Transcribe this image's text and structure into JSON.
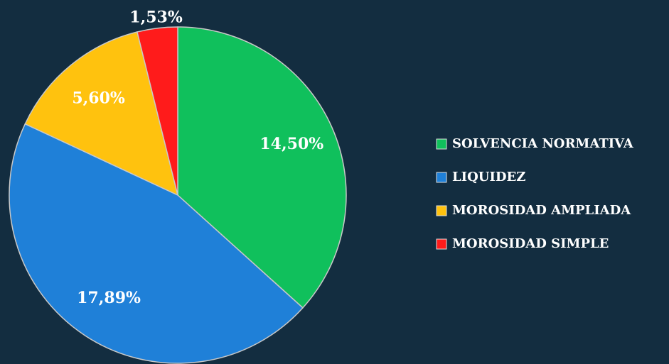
{
  "chart_data": {
    "type": "pie",
    "categories": [
      "SOLVENCIA NORMATIVA",
      "LIQUIDEZ",
      "MOROSIDAD AMPLIADA",
      "MOROSIDAD SIMPLE"
    ],
    "values": [
      14.5,
      17.89,
      5.6,
      1.53
    ],
    "value_labels": [
      "14,50%",
      "17,89%",
      "5,60%",
      "1,53%"
    ],
    "colors": [
      "#10c05c",
      "#1f80d8",
      "#ffc20e",
      "#ff1b1b"
    ],
    "legend": "right"
  }
}
